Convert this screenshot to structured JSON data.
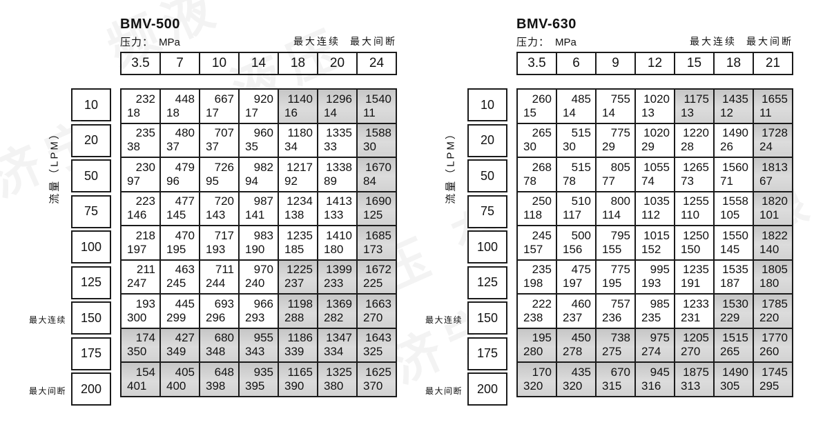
{
  "page": {
    "background": "#ffffff",
    "watermark_fragments": [
      "频液",
      "济宁",
      "压 有",
      "有限",
      "济宁",
      "液压"
    ]
  },
  "colors": {
    "border": "#1a1a1a",
    "text": "#111111",
    "shaded_cell": "#d2d2d2",
    "background": "#ffffff"
  },
  "tables": [
    {
      "title": "BMV-500",
      "pressure_label": "压力：",
      "pressure_unit": "MPa",
      "legend": {
        "continuous": "最大连续",
        "intermittent": "最大间断"
      },
      "flow_axis_label": "流量（LPM）",
      "pressures_mpa": [
        "3.5",
        "7",
        "10",
        "14",
        "18",
        "20",
        "24"
      ],
      "row_markers": {
        "continuous_flow": "150",
        "intermittent_flow": "200"
      },
      "rows": [
        {
          "flow": "10",
          "values": [
            [
              "232",
              "18"
            ],
            [
              "448",
              "18"
            ],
            [
              "667",
              "17"
            ],
            [
              "920",
              "17"
            ],
            [
              "1140",
              "16"
            ],
            [
              "1296",
              "14"
            ],
            [
              "1540",
              "11"
            ]
          ],
          "shaded_cols": [
            4,
            5,
            6
          ]
        },
        {
          "flow": "20",
          "values": [
            [
              "235",
              "38"
            ],
            [
              "480",
              "37"
            ],
            [
              "707",
              "37"
            ],
            [
              "960",
              "35"
            ],
            [
              "1180",
              "34"
            ],
            [
              "1335",
              "33"
            ],
            [
              "1588",
              "30"
            ]
          ],
          "shaded_cols": [
            6
          ]
        },
        {
          "flow": "50",
          "values": [
            [
              "230",
              "97"
            ],
            [
              "479",
              "96"
            ],
            [
              "726",
              "95"
            ],
            [
              "982",
              "94"
            ],
            [
              "1217",
              "92"
            ],
            [
              "1338",
              "89"
            ],
            [
              "1670",
              "84"
            ]
          ],
          "shaded_cols": [
            6
          ]
        },
        {
          "flow": "75",
          "values": [
            [
              "223",
              "146"
            ],
            [
              "477",
              "145"
            ],
            [
              "720",
              "143"
            ],
            [
              "987",
              "141"
            ],
            [
              "1234",
              "138"
            ],
            [
              "1413",
              "133"
            ],
            [
              "1690",
              "125"
            ]
          ],
          "shaded_cols": [
            6
          ]
        },
        {
          "flow": "100",
          "values": [
            [
              "218",
              "197"
            ],
            [
              "470",
              "195"
            ],
            [
              "717",
              "193"
            ],
            [
              "983",
              "190"
            ],
            [
              "1235",
              "185"
            ],
            [
              "1410",
              "180"
            ],
            [
              "1685",
              "173"
            ]
          ],
          "shaded_cols": [
            6
          ]
        },
        {
          "flow": "125",
          "values": [
            [
              "211",
              "247"
            ],
            [
              "463",
              "245"
            ],
            [
              "711",
              "244"
            ],
            [
              "970",
              "240"
            ],
            [
              "1225",
              "237"
            ],
            [
              "1399",
              "233"
            ],
            [
              "1672",
              "225"
            ]
          ],
          "shaded_cols": [
            4,
            5,
            6
          ]
        },
        {
          "flow": "150",
          "values": [
            [
              "193",
              "300"
            ],
            [
              "445",
              "299"
            ],
            [
              "693",
              "296"
            ],
            [
              "966",
              "293"
            ],
            [
              "1198",
              "288"
            ],
            [
              "1369",
              "282"
            ],
            [
              "1663",
              "270"
            ]
          ],
          "shaded_cols": [
            4,
            5,
            6
          ]
        },
        {
          "flow": "175",
          "values": [
            [
              "174",
              "350"
            ],
            [
              "427",
              "349"
            ],
            [
              "680",
              "348"
            ],
            [
              "955",
              "343"
            ],
            [
              "1186",
              "339"
            ],
            [
              "1347",
              "334"
            ],
            [
              "1643",
              "325"
            ]
          ],
          "shaded_cols": [
            0,
            1,
            2,
            3,
            4,
            5,
            6
          ]
        },
        {
          "flow": "200",
          "values": [
            [
              "154",
              "401"
            ],
            [
              "405",
              "400"
            ],
            [
              "648",
              "398"
            ],
            [
              "935",
              "395"
            ],
            [
              "1165",
              "390"
            ],
            [
              "1325",
              "380"
            ],
            [
              "1625",
              "370"
            ]
          ],
          "shaded_cols": [
            0,
            1,
            2,
            3,
            4,
            5,
            6
          ]
        }
      ]
    },
    {
      "title": "BMV-630",
      "pressure_label": "压力：",
      "pressure_unit": "MPa",
      "legend": {
        "continuous": "最大连续",
        "intermittent": "最大间断"
      },
      "flow_axis_label": "流量（LPM）",
      "pressures_mpa": [
        "3.5",
        "6",
        "9",
        "12",
        "15",
        "18",
        "21"
      ],
      "row_markers": {
        "continuous_flow": "150",
        "intermittent_flow": "200"
      },
      "rows": [
        {
          "flow": "10",
          "values": [
            [
              "260",
              "15"
            ],
            [
              "485",
              "14"
            ],
            [
              "755",
              "14"
            ],
            [
              "1020",
              "13"
            ],
            [
              "1175",
              "13"
            ],
            [
              "1435",
              "12"
            ],
            [
              "1655",
              "11"
            ]
          ],
          "shaded_cols": [
            4,
            5,
            6
          ]
        },
        {
          "flow": "20",
          "values": [
            [
              "265",
              "30"
            ],
            [
              "515",
              "30"
            ],
            [
              "775",
              "29"
            ],
            [
              "1020",
              "29"
            ],
            [
              "1220",
              "28"
            ],
            [
              "1490",
              "26"
            ],
            [
              "1728",
              "24"
            ]
          ],
          "shaded_cols": [
            6
          ]
        },
        {
          "flow": "50",
          "values": [
            [
              "268",
              "78"
            ],
            [
              "515",
              "78"
            ],
            [
              "805",
              "77"
            ],
            [
              "1055",
              "74"
            ],
            [
              "1265",
              "73"
            ],
            [
              "1560",
              "71"
            ],
            [
              "1813",
              "67"
            ]
          ],
          "shaded_cols": [
            6
          ]
        },
        {
          "flow": "75",
          "values": [
            [
              "250",
              "118"
            ],
            [
              "510",
              "117"
            ],
            [
              "800",
              "114"
            ],
            [
              "1035",
              "112"
            ],
            [
              "1255",
              "110"
            ],
            [
              "1558",
              "105"
            ],
            [
              "1820",
              "101"
            ]
          ],
          "shaded_cols": [
            6
          ]
        },
        {
          "flow": "100",
          "values": [
            [
              "245",
              "157"
            ],
            [
              "500",
              "156"
            ],
            [
              "795",
              "155"
            ],
            [
              "1015",
              "152"
            ],
            [
              "1250",
              "150"
            ],
            [
              "1550",
              "145"
            ],
            [
              "1822",
              "140"
            ]
          ],
          "shaded_cols": [
            6
          ]
        },
        {
          "flow": "125",
          "values": [
            [
              "235",
              "198"
            ],
            [
              "475",
              "197"
            ],
            [
              "775",
              "195"
            ],
            [
              "995",
              "193"
            ],
            [
              "1235",
              "191"
            ],
            [
              "1535",
              "187"
            ],
            [
              "1805",
              "180"
            ]
          ],
          "shaded_cols": [
            6
          ]
        },
        {
          "flow": "150",
          "values": [
            [
              "222",
              "238"
            ],
            [
              "460",
              "237"
            ],
            [
              "757",
              "236"
            ],
            [
              "985",
              "235"
            ],
            [
              "1233",
              "231"
            ],
            [
              "1530",
              "229"
            ],
            [
              "1785",
              "220"
            ]
          ],
          "shaded_cols": [
            5,
            6
          ]
        },
        {
          "flow": "175",
          "values": [
            [
              "195",
              "280"
            ],
            [
              "450",
              "278"
            ],
            [
              "738",
              "275"
            ],
            [
              "975",
              "274"
            ],
            [
              "1205",
              "270"
            ],
            [
              "1515",
              "265"
            ],
            [
              "1770",
              "260"
            ]
          ],
          "shaded_cols": [
            0,
            1,
            2,
            3,
            4,
            5,
            6
          ]
        },
        {
          "flow": "200",
          "values": [
            [
              "170",
              "320"
            ],
            [
              "435",
              "320"
            ],
            [
              "670",
              "315"
            ],
            [
              "945",
              "316"
            ],
            [
              "1875",
              "313"
            ],
            [
              "1490",
              "305"
            ],
            [
              "1745",
              "295"
            ]
          ],
          "shaded_cols": [
            0,
            1,
            2,
            3,
            4,
            5,
            6
          ]
        }
      ]
    }
  ]
}
